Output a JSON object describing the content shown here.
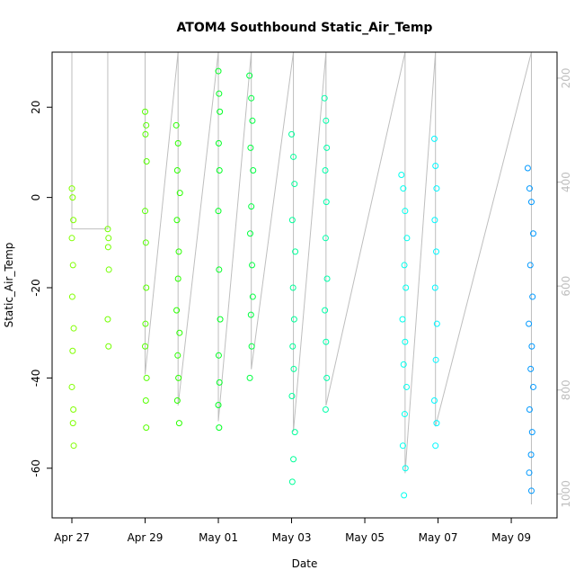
{
  "chart_data": {
    "type": "scatter",
    "title": "ATOM4 Southbound Static_Air_Temp",
    "xlabel": "Date",
    "ylabel": "Static_Air_Temp",
    "xlim": [
      -0.54,
      13.25
    ],
    "ylim": [
      -71,
      32.2
    ],
    "y2lim": [
      1046,
      150
    ],
    "xticks": [
      {
        "value": 0,
        "label": "Apr 27"
      },
      {
        "value": 2,
        "label": "Apr 29"
      },
      {
        "value": 4,
        "label": "May 01"
      },
      {
        "value": 6,
        "label": "May 03"
      },
      {
        "value": 8,
        "label": "May 05"
      },
      {
        "value": 10,
        "label": "May 07"
      },
      {
        "value": 12,
        "label": "May 09"
      }
    ],
    "yticks": [
      -60,
      -40,
      -20,
      0,
      20
    ],
    "y2ticks": [
      200,
      400,
      600,
      800,
      1000
    ],
    "series": [
      {
        "axis": "y2",
        "style": "line",
        "color": "#bebebe",
        "x": [
          0,
          0,
          0.98,
          0.98,
          2.0,
          2.0,
          2.9,
          2.9,
          4.0,
          4.0,
          4.9,
          4.9,
          6.05,
          6.05,
          6.94,
          6.94,
          9.1,
          9.1,
          9.93,
          9.93,
          12.55,
          12.55
        ],
        "values": [
          150,
          490,
          490,
          150,
          150,
          770,
          150,
          830,
          150,
          860,
          150,
          760,
          150,
          880,
          150,
          830,
          150,
          960,
          150,
          870,
          150,
          1020
        ]
      },
      {
        "color": "#80ff00",
        "x": [
          0.0,
          0.02,
          0.04,
          0.0,
          0.03,
          0.01,
          0.05,
          0.02,
          0.0,
          0.04,
          0.03,
          0.05
        ],
        "values": [
          2,
          0,
          -5,
          -9,
          -15,
          -22,
          -29,
          -34,
          -42,
          -47,
          -50,
          -55
        ]
      },
      {
        "color": "#73ff00",
        "x": [
          0.98,
          1.0,
          0.99,
          1.01,
          0.98,
          1.0
        ],
        "values": [
          -7,
          -9,
          -11,
          -16,
          -27,
          -33
        ]
      },
      {
        "color": "#55ff00",
        "x": [
          2.0,
          2.03,
          2.01,
          2.04,
          2.0,
          2.02,
          2.03,
          2.01,
          2.0,
          2.04,
          2.02,
          2.03
        ],
        "values": [
          19,
          16,
          14,
          8,
          -3,
          -10,
          -20,
          -28,
          -33,
          -40,
          -45,
          -51
        ]
      },
      {
        "color": "#2bff00",
        "x": [
          2.85,
          2.9,
          2.88,
          2.95,
          2.87,
          2.92,
          2.9,
          2.86,
          2.94,
          2.89,
          2.91,
          2.88,
          2.93
        ],
        "values": [
          16,
          12,
          6,
          1,
          -5,
          -12,
          -18,
          -25,
          -30,
          -35,
          -40,
          -45,
          -50
        ]
      },
      {
        "color": "#00ff22",
        "x": [
          4.0,
          4.02,
          4.04,
          4.01,
          4.03,
          4.0,
          4.02,
          4.05,
          4.01,
          4.03,
          4.0,
          4.02
        ],
        "values": [
          28,
          23,
          19,
          12,
          6,
          -3,
          -16,
          -27,
          -35,
          -41,
          -46,
          -51
        ]
      },
      {
        "color": "#00ff40",
        "x": [
          4.85,
          4.9,
          4.93,
          4.88,
          4.95,
          4.9,
          4.87,
          4.92,
          4.94,
          4.89,
          4.91,
          4.86
        ],
        "values": [
          27,
          22,
          17,
          11,
          6,
          -2,
          -8,
          -15,
          -22,
          -26,
          -33,
          -40
        ]
      },
      {
        "color": "#00ff99",
        "x": [
          6.0,
          6.05,
          6.08,
          6.02,
          6.1,
          6.04,
          6.07,
          6.03,
          6.06,
          6.01,
          6.09,
          6.05,
          6.02
        ],
        "values": [
          14,
          9,
          3,
          -5,
          -12,
          -20,
          -27,
          -33,
          -38,
          -44,
          -52,
          -58,
          -63
        ]
      },
      {
        "color": "#00ffaa",
        "x": [
          6.9,
          6.94,
          6.96,
          6.92,
          6.95,
          6.93,
          6.97,
          6.91,
          6.94,
          6.96,
          6.93
        ],
        "values": [
          22,
          17,
          11,
          6,
          -1,
          -9,
          -18,
          -25,
          -32,
          -40,
          -47
        ]
      },
      {
        "color": "#00ffee",
        "x": [
          9.0,
          9.05,
          9.1,
          9.15,
          9.08,
          9.12,
          9.03,
          9.1,
          9.06,
          9.14,
          9.09,
          9.04,
          9.11,
          9.07
        ],
        "values": [
          5,
          2,
          -3,
          -9,
          -15,
          -20,
          -27,
          -32,
          -37,
          -42,
          -48,
          -55,
          -60,
          -66
        ]
      },
      {
        "color": "#00f7ff",
        "x": [
          9.9,
          9.93,
          9.96,
          9.91,
          9.95,
          9.92,
          9.97,
          9.94,
          9.9,
          9.96,
          9.93
        ],
        "values": [
          13,
          7,
          2,
          -5,
          -12,
          -20,
          -28,
          -36,
          -45,
          -50,
          -55
        ]
      },
      {
        "color": "#0099ff",
        "x": [
          12.45,
          12.5,
          12.55,
          12.6,
          12.52,
          12.58,
          12.48,
          12.56,
          12.53,
          12.6,
          12.5,
          12.57,
          12.54,
          12.49,
          12.55
        ],
        "values": [
          6.5,
          2,
          -1,
          -8,
          -15,
          -22,
          -28,
          -33,
          -38,
          -42,
          -47,
          -52,
          -57,
          -61,
          -65
        ]
      }
    ]
  }
}
